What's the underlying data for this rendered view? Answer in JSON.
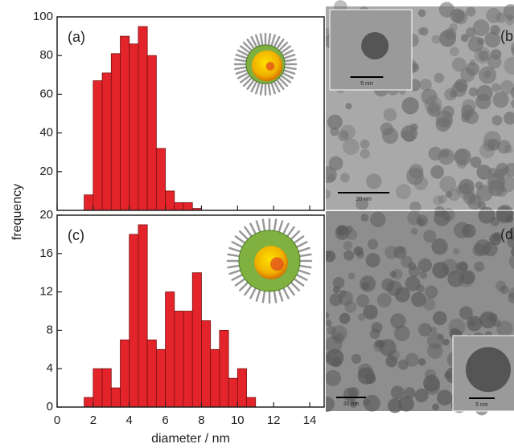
{
  "chart_data": [
    {
      "type": "histogram",
      "panel_label": "(a)",
      "ylabel": "frequency",
      "color": "#e3242b",
      "bins": [
        1.5,
        2,
        2.5,
        3,
        3.5,
        4,
        4.5,
        5,
        5.5,
        6,
        6.5,
        7,
        7.5,
        8
      ],
      "values": [
        8,
        67,
        71,
        81,
        90,
        86,
        95,
        80,
        32,
        10,
        4,
        4,
        1
      ],
      "xlim": [
        0,
        14.8
      ],
      "ylim": [
        0,
        100
      ],
      "yticks": [
        20,
        40,
        60,
        80,
        100
      ]
    },
    {
      "type": "histogram",
      "panel_label": "(c)",
      "xlabel": "diameter  / nm",
      "color": "#e3242b",
      "bins": [
        1.5,
        2,
        2.5,
        3,
        3.5,
        4,
        4.5,
        5,
        5.5,
        6,
        6.5,
        7,
        7.5,
        8,
        8.5,
        9,
        9.5,
        10,
        10.5,
        11
      ],
      "values": [
        1,
        4,
        4,
        2,
        7,
        18,
        19,
        7,
        6,
        12,
        10,
        10,
        14,
        9,
        6,
        8,
        3,
        4,
        1
      ],
      "xlim": [
        0,
        14.8
      ],
      "ylim": [
        0,
        20
      ],
      "xticks": [
        0,
        2,
        4,
        6,
        8,
        10,
        12,
        14
      ],
      "yticks": [
        0,
        4,
        8,
        12,
        16,
        20
      ]
    }
  ],
  "images": [
    {
      "label": "(b",
      "scale_bar": "20 nm",
      "inset_scale_bar": "5 nm"
    },
    {
      "label": "(d",
      "scale_bar": "20 nm",
      "inset_scale_bar": "5 nm"
    }
  ]
}
